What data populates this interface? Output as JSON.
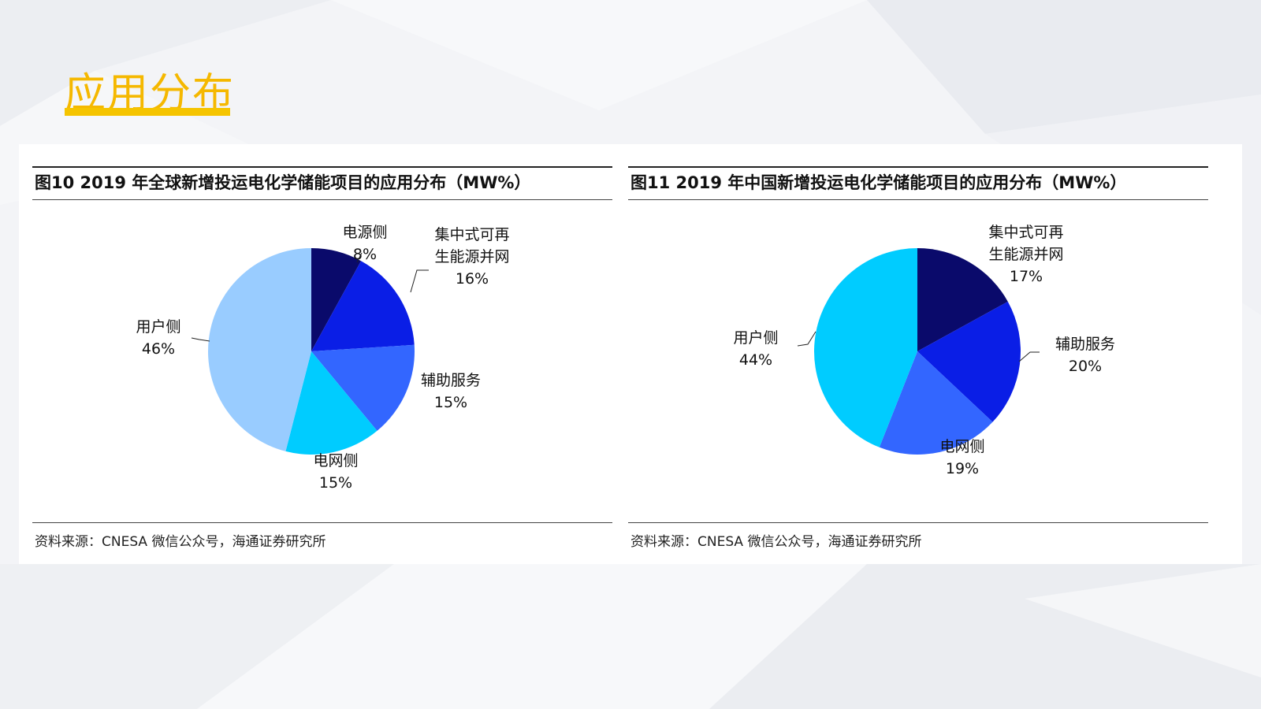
{
  "slide": {
    "title": "应用分布"
  },
  "colors": {
    "accent": "#f5b800",
    "navy": "#0a0a6b",
    "blue": "#0a1ee6",
    "mid_blue": "#3366ff",
    "cyan": "#00ccff",
    "light_blue": "#99ccff"
  },
  "chart_data": [
    {
      "type": "pie",
      "title": "图10 2019 年全球新增投运电化学储能项目的应用分布（MW%）",
      "source": "资料来源：CNESA 微信公众号，海通证券研究所",
      "slices": [
        {
          "label": [
            "电源侧"
          ],
          "value": 8,
          "value_label": "8%",
          "color": "#0a0a6b"
        },
        {
          "label": [
            "集中式可再",
            "生能源并网"
          ],
          "value": 16,
          "value_label": "16%",
          "color": "#0a1ee6"
        },
        {
          "label": [
            "辅助服务"
          ],
          "value": 15,
          "value_label": "15%",
          "color": "#3366ff"
        },
        {
          "label": [
            "电网侧"
          ],
          "value": 15,
          "value_label": "15%",
          "color": "#00ccff"
        },
        {
          "label": [
            "用户侧"
          ],
          "value": 46,
          "value_label": "46%",
          "color": "#99ccff"
        }
      ]
    },
    {
      "type": "pie",
      "title": "图11 2019 年中国新增投运电化学储能项目的应用分布（MW%）",
      "source": "资料来源：CNESA 微信公众号，海通证券研究所",
      "slices": [
        {
          "label": [
            "集中式可再",
            "生能源并网"
          ],
          "value": 17,
          "value_label": "17%",
          "color": "#0a0a6b"
        },
        {
          "label": [
            "辅助服务"
          ],
          "value": 20,
          "value_label": "20%",
          "color": "#0a1ee6"
        },
        {
          "label": [
            "电网侧"
          ],
          "value": 19,
          "value_label": "19%",
          "color": "#3366ff"
        },
        {
          "label": [
            "用户侧"
          ],
          "value": 44,
          "value_label": "44%",
          "color": "#00ccff"
        }
      ]
    }
  ]
}
